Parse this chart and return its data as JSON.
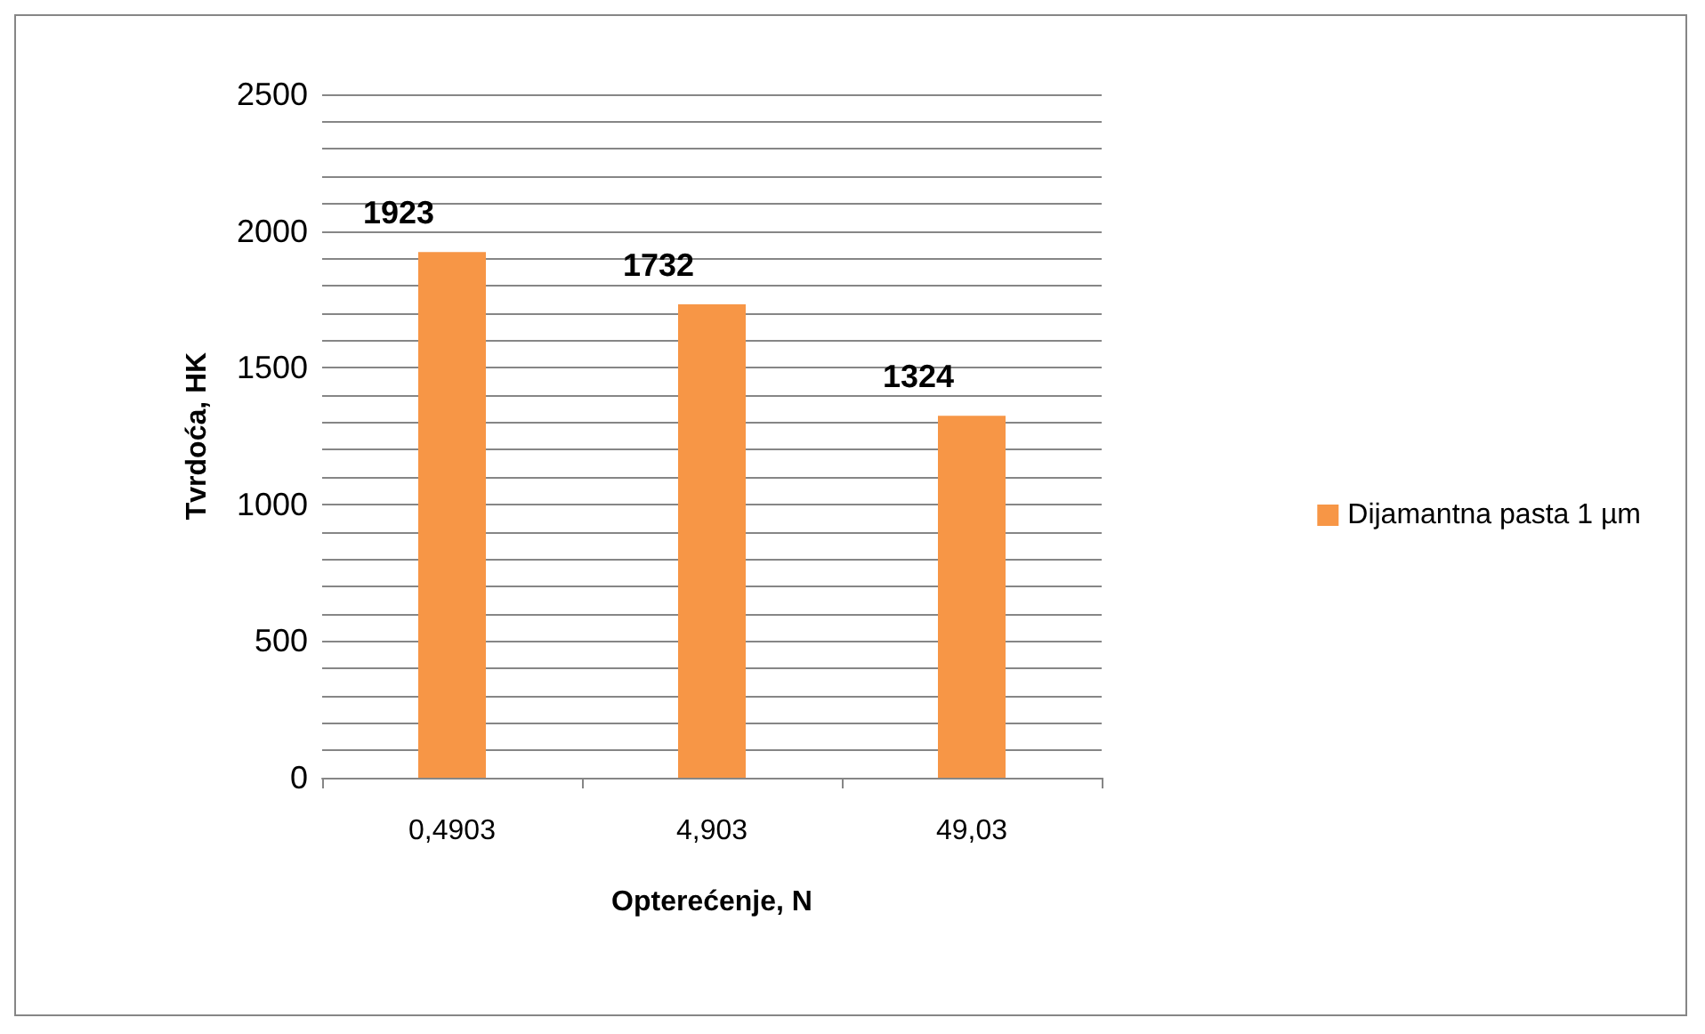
{
  "chart_data": {
    "type": "bar",
    "xlabel": "Opterećenje, N",
    "ylabel": "Tvrdoća, HK",
    "categories": [
      "0,4903",
      "4,903",
      "49,03"
    ],
    "series": [
      {
        "name": "Dijamantna pasta 1 µm",
        "color": "#f79646",
        "values": [
          1923,
          1732,
          1324
        ]
      }
    ],
    "ylim": [
      0,
      2500
    ],
    "yticks": [
      0,
      {
        "value": 100,
        "label": null
      },
      {
        "value": 200,
        "label": null
      },
      {
        "value": 300,
        "label": null
      },
      {
        "value": 400,
        "label": null
      },
      500,
      {
        "value": 600,
        "label": null
      },
      {
        "value": 700,
        "label": null
      },
      {
        "value": 800,
        "label": null
      },
      {
        "value": 900,
        "label": null
      },
      1000,
      {
        "value": 1100,
        "label": null
      },
      {
        "value": 1200,
        "label": null
      },
      {
        "value": 1300,
        "label": null
      },
      {
        "value": 1400,
        "label": null
      },
      1500,
      {
        "value": 1600,
        "label": null
      },
      {
        "value": 1700,
        "label": null
      },
      {
        "value": 1800,
        "label": null
      },
      {
        "value": 1900,
        "label": null
      },
      2000,
      {
        "value": 2100,
        "label": null
      },
      {
        "value": 2200,
        "label": null
      },
      {
        "value": 2300,
        "label": null
      },
      {
        "value": 2400,
        "label": null
      },
      2500
    ],
    "grid": "y",
    "legend": "right",
    "data_labels": true
  }
}
